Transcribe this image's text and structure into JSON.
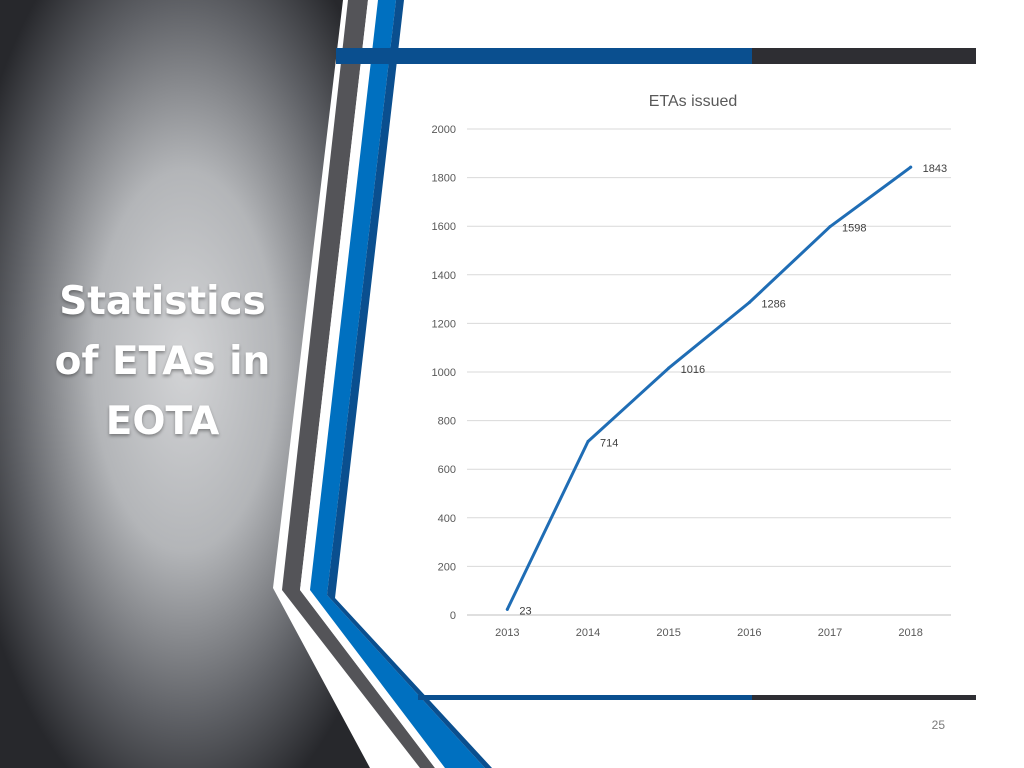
{
  "slide": {
    "side_title": "Statistics of ETAs in EOTA",
    "page_number": "25",
    "colors": {
      "accent_blue": "#0070c0",
      "dark_blue": "#0a4f8f",
      "dark_gray": "#2e2e33",
      "line": "#1f6db5"
    }
  },
  "chart_data": {
    "type": "line",
    "title": "ETAs issued",
    "categories": [
      "2013",
      "2014",
      "2015",
      "2016",
      "2017",
      "2018"
    ],
    "series": [
      {
        "values": [
          23,
          714,
          1016,
          1286,
          1598,
          1843
        ]
      }
    ],
    "data_labels": [
      "23",
      "714",
      "1016",
      "1286",
      "1598",
      "1843"
    ],
    "ylim": [
      0,
      2000
    ],
    "yticks": [
      0,
      200,
      400,
      600,
      800,
      1000,
      1200,
      1400,
      1600,
      1800,
      2000
    ],
    "grid": true,
    "legend": "none"
  }
}
